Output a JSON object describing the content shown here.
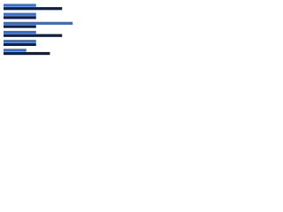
{
  "chart_data": {
    "type": "hbar",
    "categories": [
      null,
      null,
      null,
      null,
      null,
      null
    ],
    "series": [
      {
        "color": "#2e6fd8",
        "values": [
          40,
          40,
          85,
          40,
          40,
          28
        ]
      },
      {
        "color": "#0f1f45",
        "values": [
          72,
          40,
          40,
          72,
          40,
          57
        ]
      }
    ],
    "xlim": [
      0,
      100
    ]
  }
}
